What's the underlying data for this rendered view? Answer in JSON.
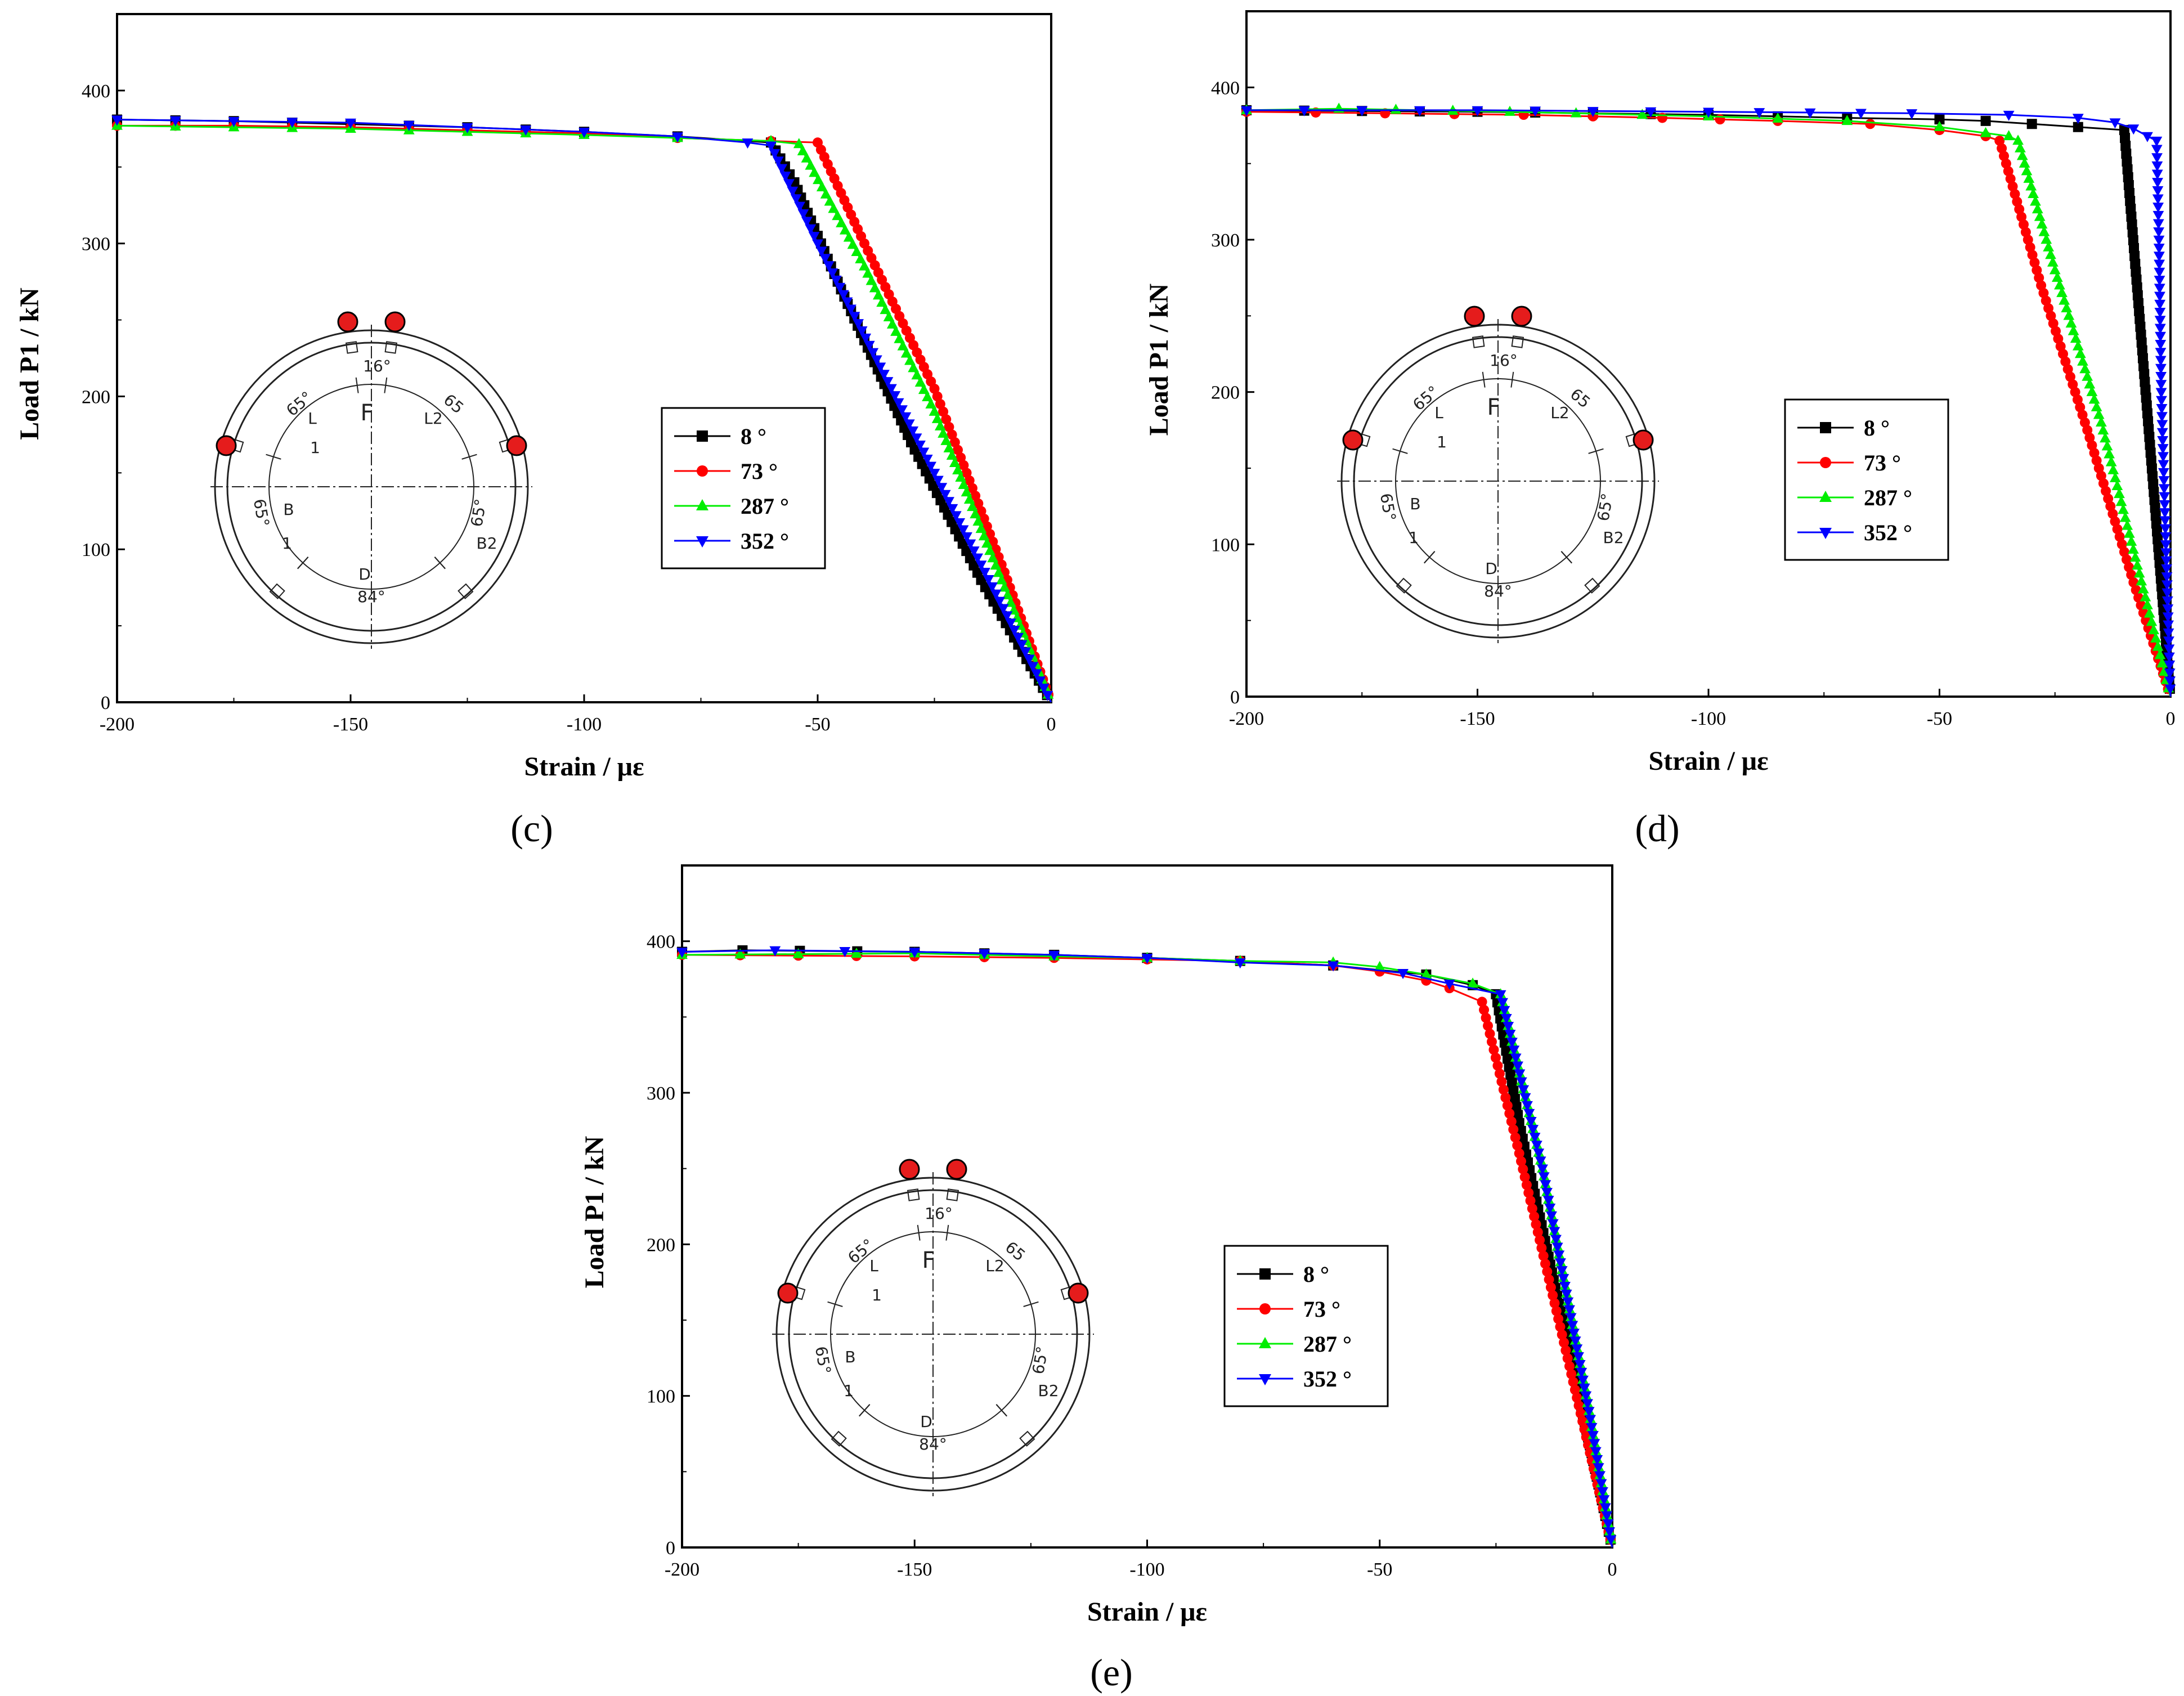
{
  "chart_data": [
    {
      "panel": "(c)",
      "type": "line",
      "xlabel": "Strain / με",
      "ylabel": "Load P1 / kN",
      "xlim": [
        -200,
        0
      ],
      "ylim": [
        0,
        450
      ],
      "xticks": [
        "-200",
        "-150",
        "-100",
        "-50",
        "0"
      ],
      "yticks": [
        "0",
        "100",
        "200",
        "300",
        "400"
      ],
      "series": [
        {
          "name": "8 °",
          "color": "#000000",
          "marker": "square",
          "x": [
            -200,
            -175,
            -150,
            -125,
            -100,
            -80,
            -60,
            -55,
            -45,
            -30,
            -15,
            0
          ],
          "y": [
            381,
            380,
            378,
            376,
            373,
            370,
            366,
            340,
            270,
            170,
            80,
            0
          ]
        },
        {
          "name": "73 °",
          "color": "#ff0000",
          "marker": "circle",
          "x": [
            -200,
            -175,
            -150,
            -125,
            -100,
            -80,
            -60,
            -50,
            -40,
            -25,
            -10,
            0
          ],
          "y": [
            377,
            377,
            376,
            374,
            372,
            369,
            367,
            366,
            300,
            205,
            85,
            0
          ]
        },
        {
          "name": "287 °",
          "color": "#00ee00",
          "marker": "triangle-up",
          "x": [
            -200,
            -175,
            -150,
            -125,
            -100,
            -80,
            -60,
            -54,
            -40,
            -25,
            -10,
            0
          ],
          "y": [
            377,
            376,
            375,
            373,
            371,
            369,
            367,
            365,
            285,
            190,
            75,
            0
          ]
        },
        {
          "name": "352 °",
          "color": "#0000ff",
          "marker": "triangle-down",
          "x": [
            -200,
            -175,
            -150,
            -125,
            -100,
            -80,
            -65,
            -60,
            -50,
            -35,
            -15,
            0
          ],
          "y": [
            381,
            380,
            379,
            376,
            373,
            370,
            366,
            364,
            300,
            210,
            90,
            0
          ]
        }
      ]
    },
    {
      "panel": "(d)",
      "type": "line",
      "xlabel": "Strain / με",
      "ylabel": "Load P1 / kN",
      "xlim": [
        -200,
        0
      ],
      "ylim": [
        0,
        450
      ],
      "xticks": [
        "-200",
        "-150",
        "-100",
        "-50",
        "0"
      ],
      "yticks": [
        "0",
        "100",
        "200",
        "300",
        "400"
      ],
      "series": [
        {
          "name": "8 °",
          "color": "#000000",
          "marker": "square",
          "x": [
            -200,
            -150,
            -100,
            -70,
            -50,
            -40,
            -30,
            -20,
            -10,
            0
          ],
          "y": [
            385,
            384,
            382,
            380,
            379,
            378,
            376,
            374,
            372,
            0
          ]
        },
        {
          "name": "73 °",
          "color": "#ff0000",
          "marker": "circle",
          "x": [
            -200,
            -170,
            -140,
            -110,
            -85,
            -65,
            -50,
            -40,
            -37,
            -28,
            -18,
            -8,
            0
          ],
          "y": [
            384,
            383,
            382,
            380,
            378,
            376,
            372,
            368,
            365,
            270,
            175,
            75,
            0
          ]
        },
        {
          "name": "287 °",
          "color": "#00ee00",
          "marker": "triangle-up",
          "x": [
            -200,
            -180,
            -143,
            -100,
            -70,
            -50,
            -40,
            -35,
            -33,
            -25,
            -15,
            -5,
            0
          ],
          "y": [
            385,
            386,
            384,
            381,
            378,
            374,
            370,
            368,
            365,
            280,
            180,
            60,
            0
          ]
        },
        {
          "name": "352 °",
          "color": "#0000ff",
          "marker": "triangle-down",
          "x": [
            -200,
            -150,
            -100,
            -56,
            -35,
            -20,
            -12,
            -8,
            -5,
            -3,
            -2.5,
            -2,
            -1,
            0
          ],
          "y": [
            385,
            385,
            384,
            383,
            382,
            380,
            377,
            373,
            368,
            365,
            300,
            200,
            100,
            0
          ]
        }
      ]
    },
    {
      "panel": "(e)",
      "type": "line",
      "xlabel": "Strain / με",
      "ylabel": "Load P1 / kN",
      "xlim": [
        -200,
        0
      ],
      "ylim": [
        0,
        450
      ],
      "xticks": [
        "-200",
        "-150",
        "-100",
        "-50",
        "0"
      ],
      "yticks": [
        "0",
        "100",
        "200",
        "300",
        "400"
      ],
      "series": [
        {
          "name": "8 °",
          "color": "#000000",
          "marker": "square",
          "x": [
            -200,
            -187,
            -150,
            -120,
            -100,
            -80,
            -60,
            -40,
            -30,
            -25,
            -20,
            -10,
            0
          ],
          "y": [
            393,
            394,
            393,
            391,
            389,
            387,
            384,
            378,
            371,
            365,
            280,
            140,
            0
          ]
        },
        {
          "name": "73 °",
          "color": "#ff0000",
          "marker": "circle",
          "x": [
            -200,
            -150,
            -120,
            -100,
            -80,
            -60,
            -50,
            -40,
            -35,
            -28,
            -20,
            -10,
            0
          ],
          "y": [
            391,
            390,
            389,
            388,
            387,
            384,
            380,
            374,
            369,
            360,
            260,
            130,
            0
          ]
        },
        {
          "name": "287 °",
          "color": "#00ee00",
          "marker": "triangle-up",
          "x": [
            -200,
            -150,
            -120,
            -100,
            -80,
            -60,
            -50,
            -40,
            -30,
            -24,
            -15,
            -5,
            0
          ],
          "y": [
            391,
            392,
            390,
            389,
            387,
            386,
            383,
            378,
            372,
            365,
            250,
            90,
            0
          ]
        },
        {
          "name": "352 °",
          "color": "#0000ff",
          "marker": "triangle-down",
          "x": [
            -200,
            -180,
            -150,
            -120,
            -100,
            -80,
            -60,
            -45,
            -35,
            -24,
            -15,
            -5,
            0
          ],
          "y": [
            393,
            394,
            393,
            391,
            389,
            386,
            384,
            379,
            372,
            365,
            250,
            90,
            0
          ]
        }
      ]
    }
  ],
  "inset_diagram": {
    "labels": [
      "16°",
      "65°",
      "65",
      "F",
      "L",
      "1",
      "L2",
      "65°",
      "65°",
      "B",
      "1",
      "B2",
      "D",
      "84°"
    ]
  }
}
